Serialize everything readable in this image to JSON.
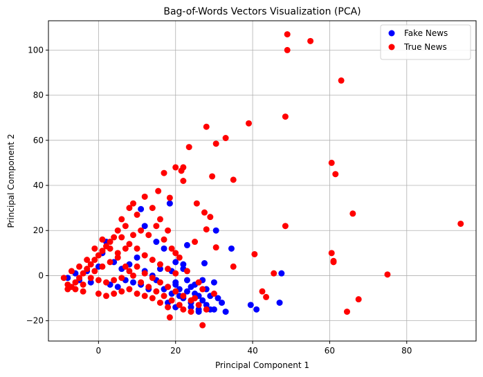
{
  "chart_data": {
    "type": "scatter",
    "title": "Bag-of-Words Vectors Visualization (PCA)",
    "xlabel": "Principal Component 1",
    "ylabel": "Principal Component 2",
    "xlim": [
      -13,
      98
    ],
    "ylim": [
      -29,
      113
    ],
    "xticks": [
      0,
      20,
      40,
      60,
      80
    ],
    "yticks": [
      -20,
      0,
      20,
      40,
      60,
      80,
      100
    ],
    "grid": true,
    "legend_position": "top-right",
    "series": [
      {
        "name": "Fake News",
        "color": "#0000ff",
        "points": [
          [
            -8,
            -1
          ],
          [
            -6,
            1
          ],
          [
            -5,
            -2
          ],
          [
            -3,
            2
          ],
          [
            -2,
            -3
          ],
          [
            0,
            4
          ],
          [
            1,
            10
          ],
          [
            2,
            15
          ],
          [
            3,
            -4
          ],
          [
            4,
            6
          ],
          [
            5,
            -5
          ],
          [
            6,
            3
          ],
          [
            7,
            -2
          ],
          [
            8,
            5
          ],
          [
            9,
            -3
          ],
          [
            10,
            8
          ],
          [
            11,
            -4
          ],
          [
            12,
            2
          ],
          [
            13,
            -6
          ],
          [
            14,
            0
          ],
          [
            15,
            -2
          ],
          [
            16,
            3
          ],
          [
            17,
            -6
          ],
          [
            18,
            -5
          ],
          [
            19,
            -8
          ],
          [
            20,
            -4
          ],
          [
            21,
            -9
          ],
          [
            22,
            -10
          ],
          [
            23,
            -7
          ],
          [
            24,
            -12
          ],
          [
            25,
            -8
          ],
          [
            26,
            -15
          ],
          [
            27,
            -11
          ],
          [
            28,
            -13
          ],
          [
            29,
            -9
          ],
          [
            30,
            -15
          ],
          [
            31,
            -10
          ],
          [
            32,
            -12
          ],
          [
            33,
            -16
          ],
          [
            20,
            -3
          ],
          [
            22,
            5
          ],
          [
            19,
            2
          ],
          [
            21,
            -6
          ],
          [
            23,
            -2
          ],
          [
            24,
            -5
          ],
          [
            26,
            -9
          ],
          [
            28,
            -6
          ],
          [
            30,
            -3
          ],
          [
            27,
            -2
          ],
          [
            25,
            -4
          ],
          [
            11,
            29.5
          ],
          [
            18.5,
            32
          ],
          [
            12,
            22
          ],
          [
            15,
            15
          ],
          [
            17,
            12
          ],
          [
            20,
            6
          ],
          [
            22,
            3
          ],
          [
            23,
            13.5
          ],
          [
            27.5,
            5.5
          ],
          [
            30.5,
            20
          ],
          [
            34.5,
            12
          ],
          [
            39.5,
            -13
          ],
          [
            41,
            -15
          ],
          [
            47.5,
            1
          ],
          [
            47,
            -12
          ],
          [
            18,
            -12
          ],
          [
            20,
            -14
          ],
          [
            24,
            -14
          ],
          [
            26,
            -16
          ],
          [
            29,
            -15
          ]
        ]
      },
      {
        "name": "True News",
        "color": "#ff0000",
        "points": [
          [
            49,
            107
          ],
          [
            55,
            104
          ],
          [
            49,
            100
          ],
          [
            63,
            86.5
          ],
          [
            28,
            66
          ],
          [
            48.5,
            70.5
          ],
          [
            39,
            67.5
          ],
          [
            33,
            61
          ],
          [
            30.5,
            58.5
          ],
          [
            23.5,
            57
          ],
          [
            60.5,
            50
          ],
          [
            61.5,
            45
          ],
          [
            35,
            42.5
          ],
          [
            29.5,
            44
          ],
          [
            21.5,
            46.5
          ],
          [
            20,
            48
          ],
          [
            22,
            48
          ],
          [
            17,
            45.5
          ],
          [
            15.5,
            37.5
          ],
          [
            22,
            42
          ],
          [
            18.5,
            34.5
          ],
          [
            25.5,
            32
          ],
          [
            27.5,
            28
          ],
          [
            29,
            26
          ],
          [
            30.5,
            12.5
          ],
          [
            28,
            20.5
          ],
          [
            25,
            15
          ],
          [
            48.5,
            22
          ],
          [
            66,
            27.5
          ],
          [
            94,
            23
          ],
          [
            60.5,
            10
          ],
          [
            61,
            6
          ],
          [
            61,
            6.5
          ],
          [
            75,
            0.5
          ],
          [
            67.5,
            -10.5
          ],
          [
            64.5,
            -16
          ],
          [
            43.5,
            -9.5
          ],
          [
            42.5,
            -7
          ],
          [
            45.5,
            1
          ],
          [
            40.5,
            9.5
          ],
          [
            35,
            4
          ],
          [
            27,
            -22
          ],
          [
            24,
            -16
          ],
          [
            18.5,
            -18.5
          ],
          [
            22,
            -15
          ],
          [
            25,
            -10
          ],
          [
            30,
            -8
          ],
          [
            27,
            -6
          ],
          [
            26,
            -3
          ],
          [
            23,
            2
          ],
          [
            20,
            10
          ],
          [
            18,
            20
          ],
          [
            16,
            25
          ],
          [
            14,
            30
          ],
          [
            12,
            35
          ],
          [
            10,
            27
          ],
          [
            9,
            32
          ],
          [
            8,
            30
          ],
          [
            6,
            25
          ],
          [
            7,
            22
          ],
          [
            5,
            20
          ],
          [
            4,
            17
          ],
          [
            3,
            15
          ],
          [
            2,
            13
          ],
          [
            1,
            11
          ],
          [
            0,
            9
          ],
          [
            -1,
            7
          ],
          [
            -2,
            5
          ],
          [
            -3,
            3
          ],
          [
            -4,
            1
          ],
          [
            -5,
            -1
          ],
          [
            -6,
            -3
          ],
          [
            -7,
            -5
          ],
          [
            -8,
            -6
          ],
          [
            -9,
            -1
          ],
          [
            -5,
            4
          ],
          [
            -3,
            7
          ],
          [
            -1,
            12
          ],
          [
            1,
            16
          ],
          [
            3,
            12
          ],
          [
            5,
            8
          ],
          [
            7,
            4
          ],
          [
            9,
            0
          ],
          [
            11,
            -3
          ],
          [
            13,
            -5
          ],
          [
            15,
            -7
          ],
          [
            17,
            -9
          ],
          [
            19,
            -11
          ],
          [
            21,
            -13
          ],
          [
            -7,
            2
          ],
          [
            -8,
            -4
          ],
          [
            -4,
            -7
          ],
          [
            0,
            -8
          ],
          [
            2,
            -9
          ],
          [
            4,
            -8
          ],
          [
            6,
            -7
          ],
          [
            8,
            -6
          ],
          [
            10,
            -8
          ],
          [
            12,
            -9
          ],
          [
            14,
            -10
          ],
          [
            16,
            -12
          ],
          [
            18,
            -14
          ],
          [
            6,
            17
          ],
          [
            8,
            14
          ],
          [
            10,
            12
          ],
          [
            12,
            9
          ],
          [
            14,
            7
          ],
          [
            16,
            5
          ],
          [
            18,
            3
          ],
          [
            20,
            1
          ],
          [
            13,
            18
          ],
          [
            15,
            22
          ],
          [
            17,
            16
          ],
          [
            19,
            12
          ],
          [
            21,
            8
          ],
          [
            11,
            20
          ],
          [
            9,
            18
          ],
          [
            7,
            12
          ],
          [
            5,
            10
          ],
          [
            3,
            6
          ],
          [
            1,
            4
          ],
          [
            -1,
            2
          ],
          [
            -2,
            -1
          ],
          [
            -4,
            -4
          ],
          [
            -6,
            -6
          ],
          [
            0,
            -2
          ],
          [
            2,
            -3
          ],
          [
            4,
            -2
          ],
          [
            6,
            -1
          ],
          [
            8,
            2
          ],
          [
            10,
            4
          ],
          [
            12,
            1
          ],
          [
            14,
            -1
          ],
          [
            16,
            -3
          ],
          [
            18,
            -5
          ],
          [
            20,
            -7
          ],
          [
            22,
            -9
          ],
          [
            24,
            -11
          ],
          [
            26,
            -13
          ],
          [
            28,
            -15
          ]
        ]
      }
    ]
  }
}
